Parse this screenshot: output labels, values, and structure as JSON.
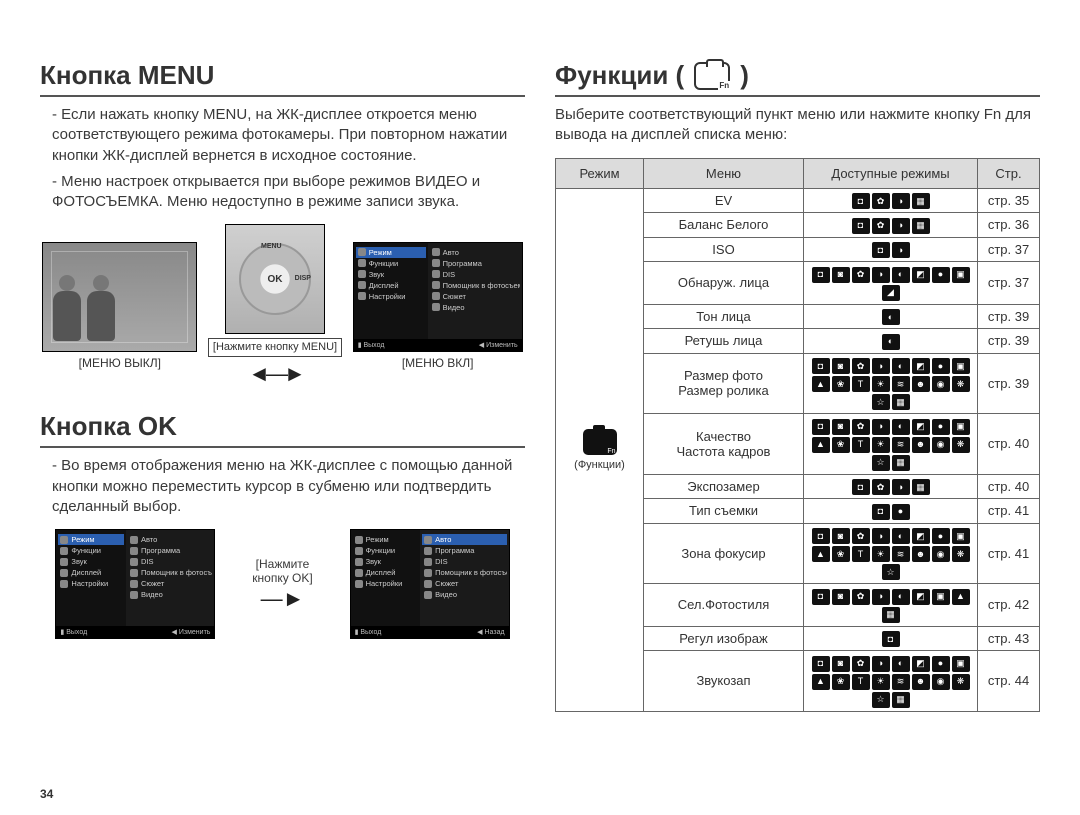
{
  "pageNumber": "34",
  "left": {
    "sectionMenu": {
      "title": "Кнопка MENU",
      "paragraphs": [
        "- Если нажать кнопку MENU, на ЖК-дисплее откроется меню соответствующего режима фотокамеры. При повторном нажатии кнопки ЖК-дисплей вернется в исходное состояние.",
        "- Меню настроек открывается при выборе режимов ВИДЕО и ФОТОСЪЕМКА. Меню недоступно в режиме записи звука."
      ],
      "fig": {
        "captionOff": "[МЕНЮ ВЫКЛ]",
        "captionOn": "[МЕНЮ ВКЛ]",
        "midLabel": "[Нажмите кнопку MENU]",
        "dialLabels": {
          "top": "MENU",
          "bottom": "OK",
          "left": "",
          "right": "DISP"
        },
        "menuLeft": [
          "Режим",
          "Функции",
          "Звук",
          "Дисплей",
          "Настройки"
        ],
        "menuRight": [
          "Авто",
          "Программа",
          "DIS",
          "Помощник в фотосъемке",
          "Сюжет",
          "Видео"
        ],
        "footerExit": "Выход",
        "footerChange": "Изменить"
      }
    },
    "sectionOk": {
      "title": "Кнопка OK",
      "paragraphs": [
        "- Во время отображения меню на ЖК-дисплее с помощью данной кнопки можно переместить курсор в субменю или подтвердить сделанный выбор."
      ],
      "fig": {
        "midLabel1": "[Нажмите",
        "midLabel2": "кнопку OK]",
        "menuLeft": [
          "Режим",
          "Функции",
          "Звук",
          "Дисплей",
          "Настройки"
        ],
        "menuRight": [
          "Авто",
          "Программа",
          "DIS",
          "Помощник в фотосъемке",
          "Сюжет",
          "Видео"
        ],
        "footerExit": "Выход",
        "footerChange": "Изменить",
        "footerBack": "Назад"
      }
    }
  },
  "right": {
    "title": "Функции (",
    "titleEnd": ")",
    "intro": "Выберите соответствующий пункт меню или нажмите кнопку Fn для вывода на дисплей списка меню:",
    "headers": {
      "mode": "Режим",
      "menu": "Меню",
      "available": "Доступные режимы",
      "page": "Стр."
    },
    "modeLabel": "(Функции)",
    "rows": [
      {
        "menu": "EV",
        "iconCount": 4,
        "glyphs": [
          "◘",
          "✿",
          "◑",
          "▦"
        ],
        "page": "стр. 35"
      },
      {
        "menu": "Баланс Белого",
        "iconCount": 4,
        "glyphs": [
          "◘",
          "✿",
          "◑",
          "▦"
        ],
        "page": "стр. 36"
      },
      {
        "menu": "ISO",
        "iconCount": 2,
        "glyphs": [
          "◘",
          "◑"
        ],
        "page": "стр. 37"
      },
      {
        "menu": "Обнаруж. лица",
        "iconCount": 9,
        "glyphs": [
          "◘",
          "◙",
          "✿",
          "◑",
          "◐",
          "◩",
          "●",
          "▣",
          "◢"
        ],
        "page": "стр. 37"
      },
      {
        "menu": "Тон лица",
        "iconCount": 1,
        "glyphs": [
          "◐"
        ],
        "page": "стр. 39"
      },
      {
        "menu": "Ретушь лица",
        "iconCount": 1,
        "glyphs": [
          "◐"
        ],
        "page": "стр. 39"
      },
      {
        "menu": "Размер фото / Размер ролика",
        "iconCount": 18,
        "glyphs": [
          "◘",
          "◙",
          "✿",
          "◑",
          "◐",
          "◩",
          "●",
          "▣",
          "▲",
          "❀",
          "T",
          "☀",
          "≋",
          "☻",
          "◉",
          "❋",
          "☆",
          "▦"
        ],
        "page": "стр. 39"
      },
      {
        "menu": "Качество / Частота кадров",
        "iconCount": 18,
        "glyphs": [
          "◘",
          "◙",
          "✿",
          "◑",
          "◐",
          "◩",
          "●",
          "▣",
          "▲",
          "❀",
          "T",
          "☀",
          "≋",
          "☻",
          "◉",
          "❋",
          "☆",
          "▦"
        ],
        "page": "стр. 40"
      },
      {
        "menu": "Экспозамер",
        "iconCount": 4,
        "glyphs": [
          "◘",
          "✿",
          "◑",
          "▦"
        ],
        "page": "стр. 40"
      },
      {
        "menu": "Тип съемки",
        "iconCount": 2,
        "glyphs": [
          "◘",
          "●"
        ],
        "page": "стр. 41"
      },
      {
        "menu": "Зона фокусир",
        "iconCount": 17,
        "glyphs": [
          "◘",
          "◙",
          "✿",
          "◑",
          "◐",
          "◩",
          "●",
          "▣",
          "▲",
          "❀",
          "T",
          "☀",
          "≋",
          "☻",
          "◉",
          "❋",
          "☆"
        ],
        "page": "стр. 41"
      },
      {
        "menu": "Сел.Фотостиля",
        "iconCount": 9,
        "glyphs": [
          "◘",
          "◙",
          "✿",
          "◑",
          "◐",
          "◩",
          "▣",
          "▲",
          "▦"
        ],
        "page": "стр. 42"
      },
      {
        "menu": "Регул изображ",
        "iconCount": 1,
        "glyphs": [
          "◘"
        ],
        "page": "стр. 43"
      },
      {
        "menu": "Звукозап",
        "iconCount": 18,
        "glyphs": [
          "◘",
          "◙",
          "✿",
          "◑",
          "◐",
          "◩",
          "●",
          "▣",
          "▲",
          "❀",
          "T",
          "☀",
          "≋",
          "☻",
          "◉",
          "❋",
          "☆",
          "▦"
        ],
        "page": "стр. 44"
      }
    ]
  }
}
